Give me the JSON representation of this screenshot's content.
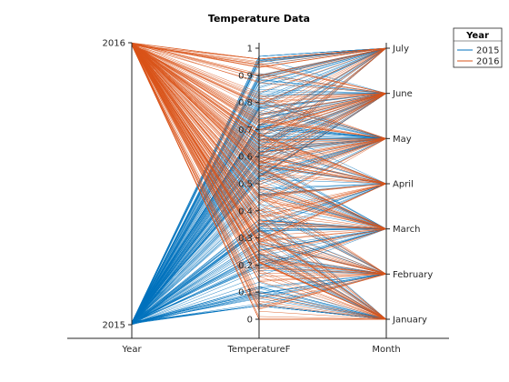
{
  "chart_data": {
    "type": "parallel-coordinates",
    "title": "Temperature Data",
    "axes": [
      {
        "name": "Year",
        "ticks": [
          "2015",
          "2016"
        ]
      },
      {
        "name": "TemperatureF",
        "ticks": [
          "0",
          "0.1",
          "0.2",
          "0.3",
          "0.4",
          "0.5",
          "0.6",
          "0.7",
          "0.8",
          "0.9",
          "1"
        ],
        "range": [
          0,
          1
        ]
      },
      {
        "name": "Month",
        "ticks": [
          "January",
          "February",
          "March",
          "April",
          "May",
          "June",
          "July"
        ]
      }
    ],
    "legend": {
      "title": "Year",
      "position": "top-right"
    },
    "series": [
      {
        "name": "2015",
        "color": "#0072BD",
        "line_count": 212,
        "month_range": [
          "January",
          "July"
        ],
        "temperature_range": [
          0.05,
          0.97
        ]
      },
      {
        "name": "2016",
        "color": "#D95319",
        "line_count": 212,
        "month_range": [
          "January",
          "July"
        ],
        "temperature_range": [
          0.0,
          0.96
        ]
      }
    ],
    "grid": false
  }
}
